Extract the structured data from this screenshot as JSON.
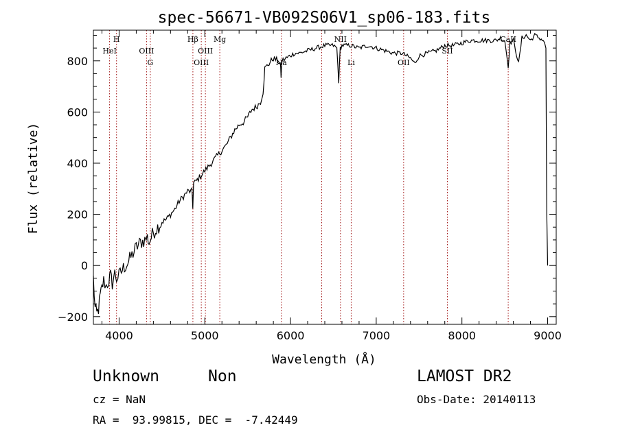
{
  "chart_data": {
    "type": "line",
    "title": "spec-56671-VB092S06V1_sp06-183.fits",
    "xlabel": "Wavelength (Å)",
    "ylabel": "Flux (relative)",
    "xlim": [
      3700,
      9100
    ],
    "ylim": [
      -230,
      920
    ],
    "xticks": [
      4000,
      5000,
      6000,
      7000,
      8000,
      9000
    ],
    "yticks": [
      -200,
      0,
      200,
      400,
      600,
      800
    ],
    "grid": false,
    "series": [
      {
        "x": [
          3700,
          3720,
          3740,
          3760,
          3780,
          3800,
          3820,
          3850,
          3880,
          3900,
          3920,
          3950,
          3970,
          4000,
          4050,
          4100,
          4150,
          4200,
          4250,
          4300,
          4330,
          4350,
          4400,
          4450,
          4500,
          4550,
          4600,
          4650,
          4700,
          4750,
          4800,
          4850,
          4860,
          4870,
          4900,
          4950,
          5000,
          5050,
          5100,
          5150,
          5200,
          5250,
          5300,
          5350,
          5400,
          5450,
          5500,
          5550,
          5600,
          5650,
          5680,
          5700,
          5750,
          5800,
          5850,
          5880,
          5890,
          5900,
          5950,
          6000,
          6050,
          6100,
          6200,
          6300,
          6400,
          6500,
          6540,
          6563,
          6580,
          6600,
          6700,
          6800,
          6900,
          7000,
          7100,
          7200,
          7300,
          7400,
          7450,
          7500,
          7600,
          7700,
          7800,
          7900,
          8000,
          8100,
          8200,
          8300,
          8400,
          8450,
          8500,
          8540,
          8560,
          8600,
          8662,
          8700,
          8750,
          8800,
          8850,
          8900,
          8950,
          8980,
          8990,
          9000
        ],
        "y": [
          -50,
          -170,
          -190,
          -170,
          -120,
          -90,
          -60,
          -80,
          -60,
          -40,
          -70,
          -30,
          -50,
          -40,
          -10,
          10,
          40,
          70,
          90,
          100,
          110,
          90,
          130,
          150,
          170,
          180,
          200,
          220,
          250,
          270,
          290,
          290,
          230,
          320,
          330,
          350,
          370,
          390,
          410,
          430,
          450,
          470,
          500,
          530,
          550,
          560,
          580,
          610,
          620,
          640,
          680,
          770,
          790,
          810,
          800,
          790,
          740,
          800,
          810,
          820,
          830,
          830,
          840,
          850,
          860,
          860,
          850,
          720,
          850,
          860,
          860,
          850,
          860,
          850,
          840,
          830,
          830,
          810,
          790,
          820,
          830,
          840,
          860,
          860,
          870,
          880,
          880,
          880,
          880,
          890,
          880,
          780,
          870,
          880,
          790,
          890,
          900,
          880,
          900,
          890,
          880,
          850,
          200,
          0
        ]
      }
    ],
    "lines": [
      {
        "label": "HeI",
        "x": 3889,
        "row": 2
      },
      {
        "label": "H",
        "x": 3970,
        "row": 1
      },
      {
        "label": "OIII",
        "x": 4320,
        "row": 2
      },
      {
        "label": "G",
        "x": 4364,
        "row": 3
      },
      {
        "label": "Hβ",
        "x": 4861,
        "row": 1
      },
      {
        "label": "OIII",
        "x": 4959,
        "row": 3
      },
      {
        "label": "OIII",
        "x": 5007,
        "row": 2
      },
      {
        "label": "Mg",
        "x": 5175,
        "row": 1
      },
      {
        "label": "Na",
        "x": 5893,
        "row": 3
      },
      {
        "label": "",
        "x": 6364,
        "row": 0
      },
      {
        "label": "NII",
        "x": 6583,
        "row": 1
      },
      {
        "label": "Li",
        "x": 6708,
        "row": 3
      },
      {
        "label": "OII",
        "x": 7320,
        "row": 3
      },
      {
        "label": "SII",
        "x": 7830,
        "row": 2
      },
      {
        "label": "CaII",
        "x": 8540,
        "row": 1
      }
    ]
  },
  "info": {
    "obj_class": "Unknown",
    "obj_subclass": "Non",
    "survey": "LAMOST DR2",
    "cz": "cz = NaN",
    "obs_date": "Obs-Date: 20140113",
    "coords": "RA =  93.99815, DEC =  -7.42449"
  }
}
